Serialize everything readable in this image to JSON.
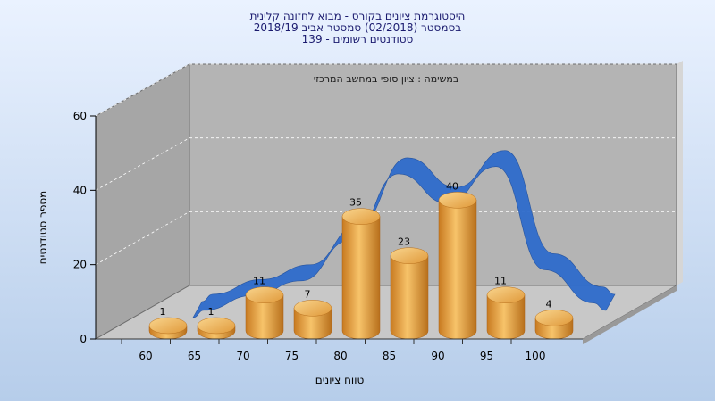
{
  "chart_data": {
    "type": "bar",
    "title_lines": [
      "היסטוגרמת ציונים בקורס - מבוא לחזונה קלינית",
      "בסמסטר  (02/2018)  סמסטר אביב 2018/19",
      "סטודנטים רשומים - 139"
    ],
    "subtitle": "במשימה : ציון סופי במחשב המרכזי",
    "xlabel": "טווח ציונים",
    "ylabel": "מספר סטודנטים",
    "categories": [
      "60",
      "65",
      "70",
      "75",
      "80",
      "85",
      "90",
      "95",
      "100"
    ],
    "values": [
      1,
      1,
      11,
      7,
      35,
      23,
      40,
      11,
      4
    ],
    "data_labels": [
      "1",
      "1",
      "11",
      "7",
      "35",
      "23",
      "40",
      "11",
      "4"
    ],
    "yticks": [
      "0",
      "20",
      "40",
      "60"
    ],
    "ylim": [
      0,
      60
    ],
    "grid": true,
    "legend": "none",
    "curve_values": [
      1,
      5,
      9,
      20,
      38,
      30,
      40,
      12,
      3
    ],
    "colors": {
      "background_top": "#eaf2ff",
      "background_bottom": "#b6cdea",
      "bar_light": "#f7c36a",
      "bar_dark": "#c87a20",
      "curve": "#2f6ccc",
      "wall": "#a6a6a6",
      "floor": "#c8c8c8"
    }
  }
}
